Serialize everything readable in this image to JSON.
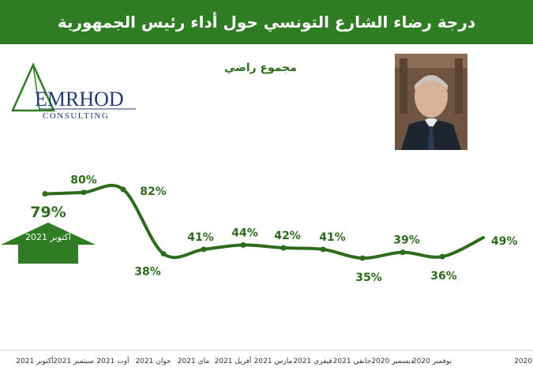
{
  "header": {
    "title": "درجة رضاء الشارع التونسي حول أداء رئيس الجمهورية"
  },
  "series_label": "مجموع راضي",
  "logo": {
    "name": "EMRHOD",
    "tagline": "CONSULTING"
  },
  "callout": {
    "value": "79%",
    "month": "أكتوبر 2021"
  },
  "colors": {
    "brand_green": "#2e7d22",
    "line": "#2e6b1c",
    "logo_blue": "#1f3a78"
  },
  "chart_data": {
    "type": "line",
    "x": [
      "أكتوبر 2021",
      "سبتمبر 2021",
      "أوت 2021",
      "جوان 2021",
      "ماي 2021",
      "أفريل 2021",
      "مارس 2021",
      "فيفري 2021",
      "جانفي 2021",
      "ديسمبر 2020",
      "نوفمبر 2020",
      "2020"
    ],
    "series": [
      {
        "values": [
          79,
          80,
          82,
          38,
          41,
          44,
          42,
          41,
          35,
          39,
          36,
          49
        ]
      }
    ],
    "data_labels": [
      "",
      "80%",
      "82%",
      "38%",
      "41%",
      "44%",
      "42%",
      "41%",
      "35%",
      "39%",
      "36%",
      "49%"
    ],
    "title": "",
    "xlabel": "",
    "ylabel": "",
    "ylim": [
      0,
      100
    ],
    "grid": false,
    "legend": "none"
  }
}
